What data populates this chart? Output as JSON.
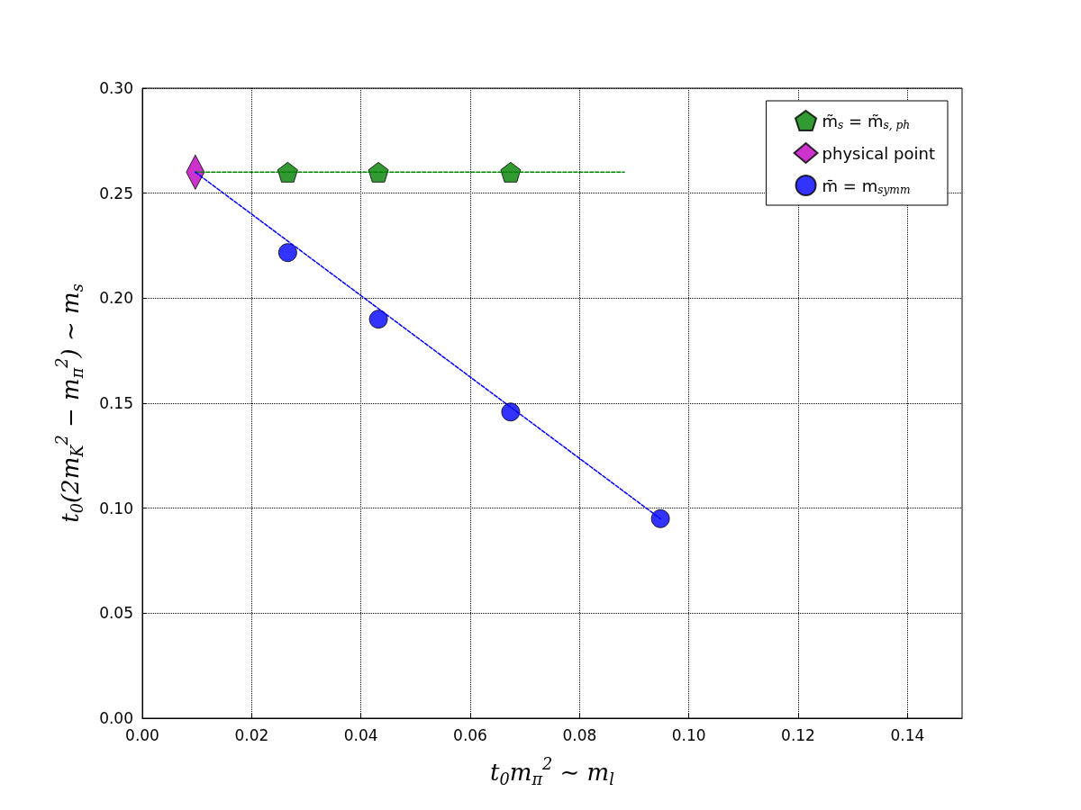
{
  "chart_data": {
    "type": "scatter",
    "xlabel": "t$_{0}$m$_{π}$$^{2}$ ∼ m$_{l}$",
    "ylabel": "t$_{0}$(2m$_{K}$$^{2}$ − m$_{π}$$^{2}$) ∼ m$_{s}$",
    "xlim": [
      0,
      0.15
    ],
    "xticks": [
      {
        "value": 0,
        "label": "0.00"
      },
      0.02,
      0.04,
      0.06,
      0.08,
      {
        "value": 0.1,
        "label": "0.10"
      },
      0.12,
      0.14
    ],
    "ylim": [
      0,
      0.3
    ],
    "yticks": [
      {
        "value": 0,
        "label": "0.00"
      },
      0.05,
      {
        "value": 0.1,
        "label": "0.10"
      },
      0.15,
      {
        "value": 0.2,
        "label": "0.20"
      },
      0.25,
      {
        "value": 0.3,
        "label": "0.30"
      }
    ],
    "grid": true,
    "legend": "top right",
    "series": [
      {
        "type": "line",
        "color": "#008000",
        "marker": "none",
        "line_style": "dashed",
        "x": [
          0.0097,
          0.0882
        ],
        "values": [
          0.26,
          0.26
        ]
      },
      {
        "type": "line",
        "color": "#0000ff",
        "marker": "none",
        "line_style": "dashed",
        "x": [
          0.0097,
          0.0948
        ],
        "values": [
          0.26,
          0.095
        ]
      },
      {
        "name": "m̃$_{s}$ = m̃$_{s, ph}$",
        "color": "#008000",
        "x": [
          0.0266,
          0.0432,
          0.0674
        ],
        "values": [
          0.26,
          0.26,
          0.26
        ]
      },
      {
        "name": "physical point",
        "color": "#bf00bf",
        "marker": "diamond",
        "x": [
          0.0097
        ],
        "values": [
          0.26
        ]
      },
      {
        "name": "m̄ = m$_{symm}$",
        "color": "#0000ff",
        "marker": "circle",
        "x": [
          0.0266,
          0.0432,
          0.0674,
          0.0948
        ],
        "values": [
          0.2217,
          0.19,
          0.1458,
          0.095
        ]
      }
    ]
  }
}
